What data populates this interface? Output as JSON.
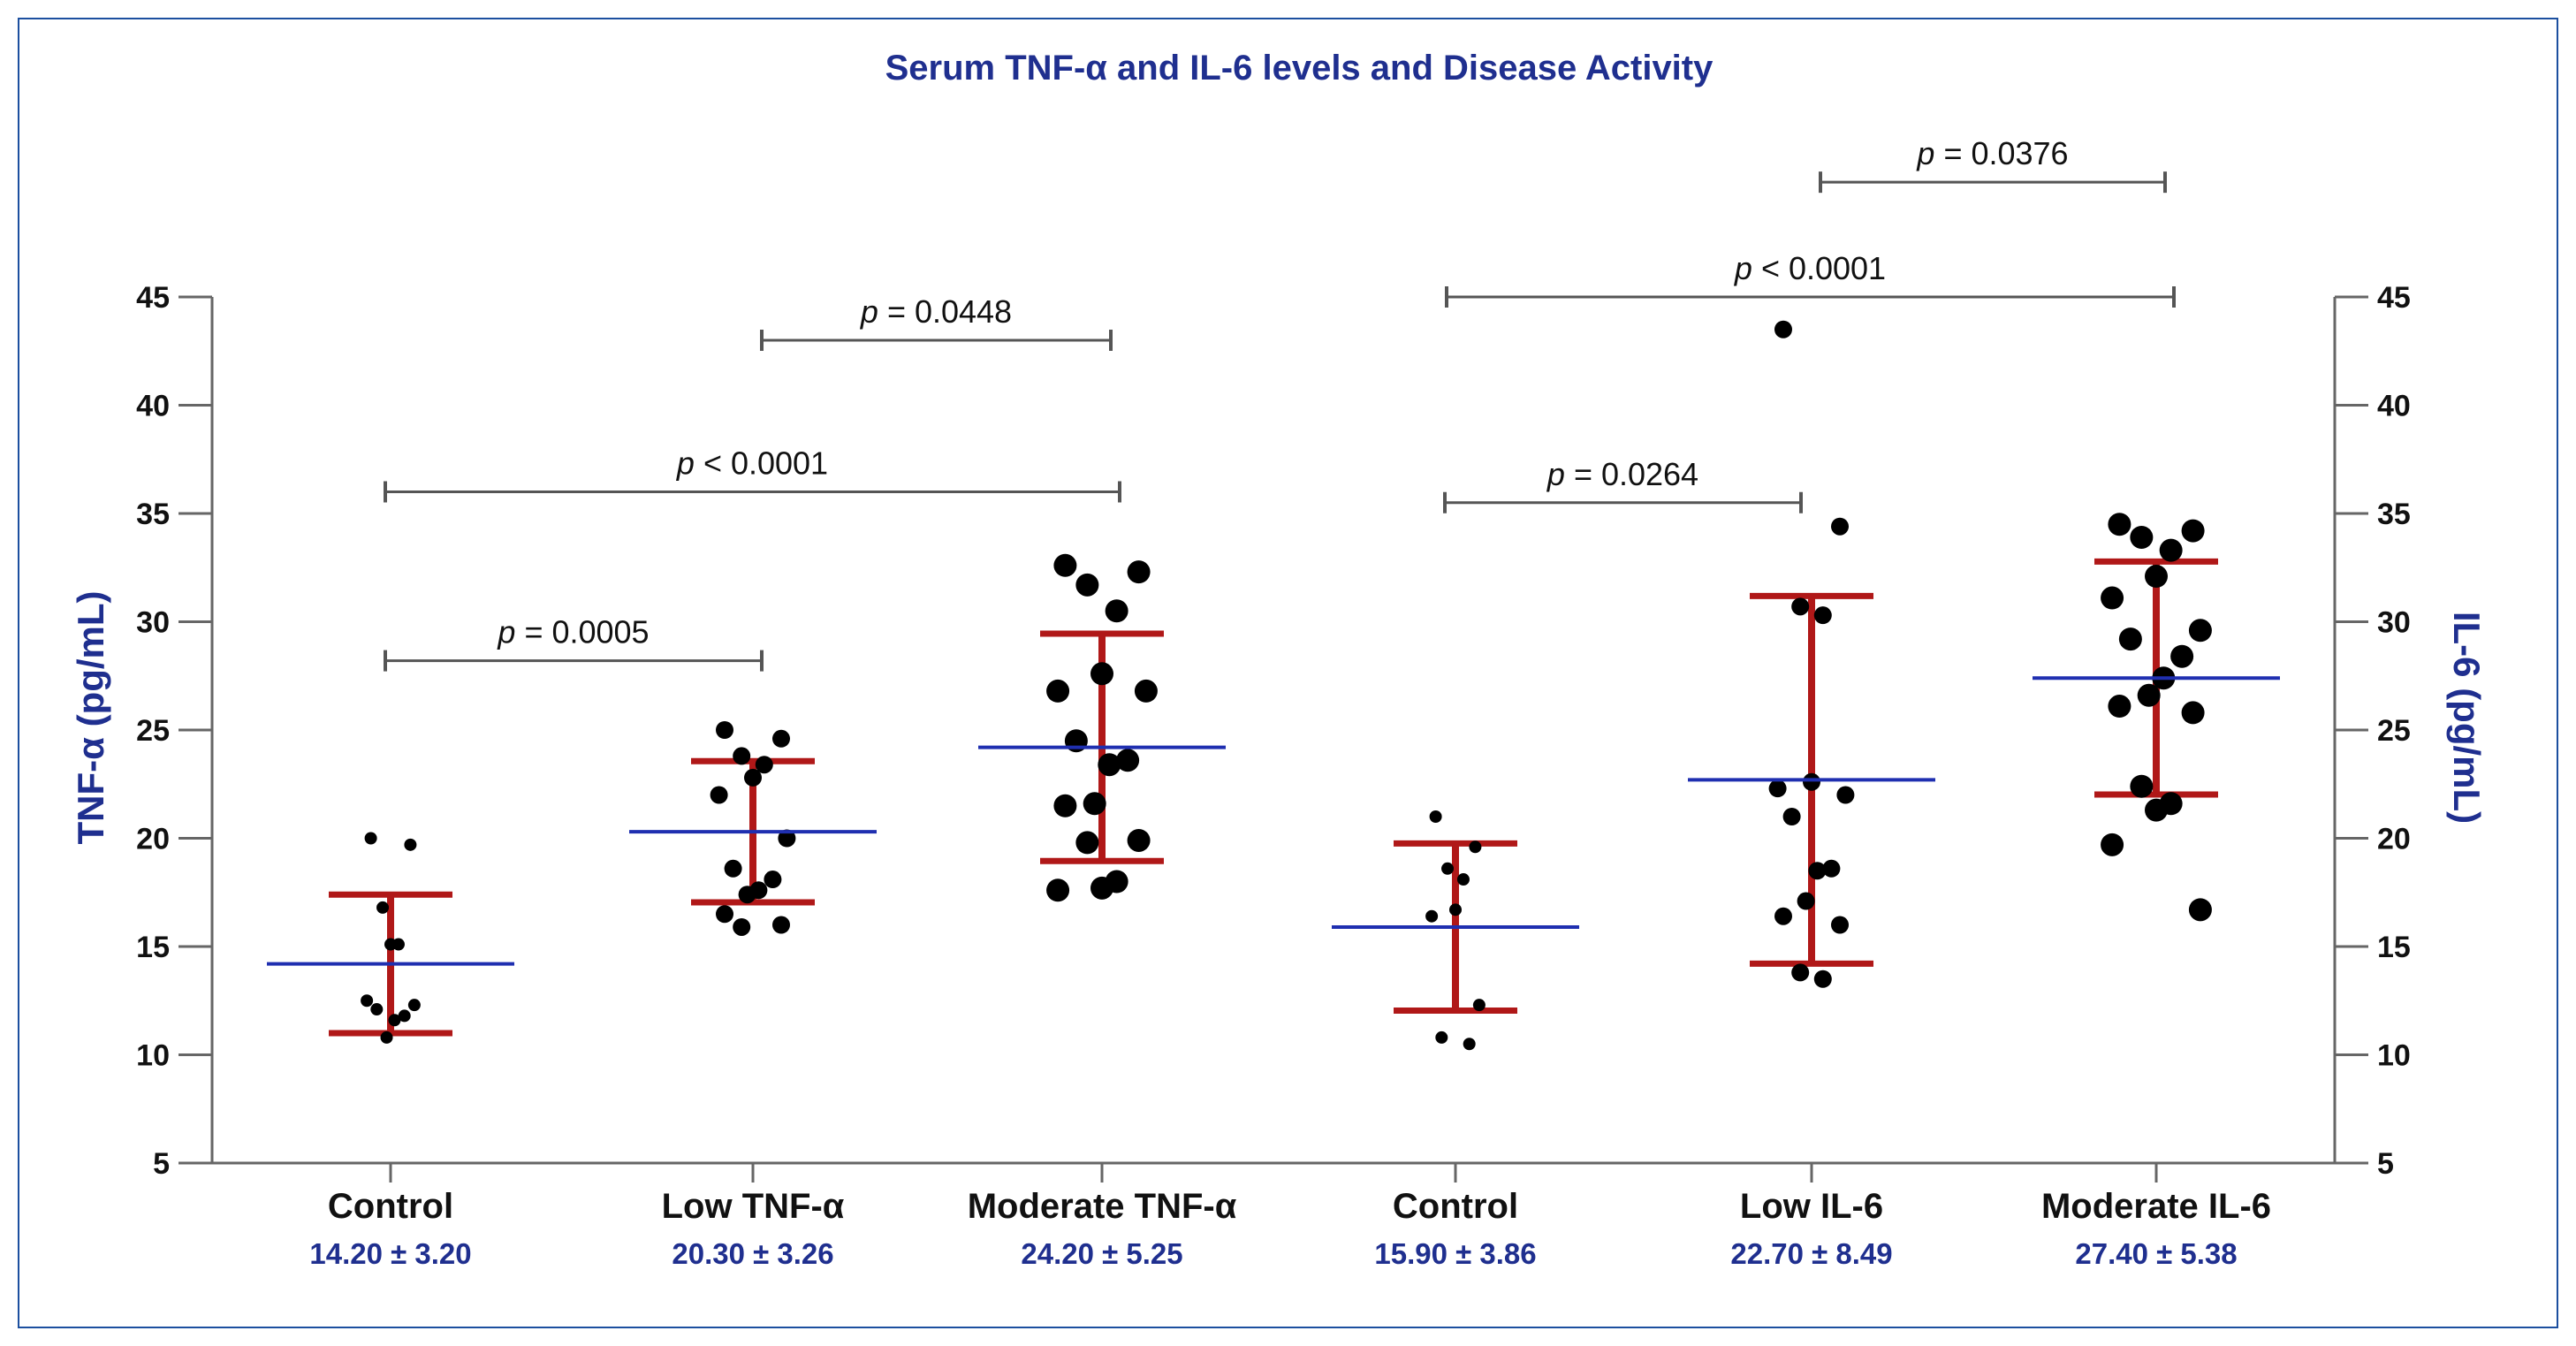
{
  "chart_data": {
    "type": "scatter",
    "title": "Serum TNF-α and IL-6 levels and Disease Activity",
    "ylabel_left": "TNF-α (pg/mL)",
    "ylabel_right": "IL-6 (pg/mL)",
    "ylim": [
      5,
      45
    ],
    "yticks": [
      5,
      10,
      15,
      20,
      25,
      30,
      35,
      40,
      45
    ],
    "colors": {
      "frame": "#1c4f9f",
      "mean_line": "#1f2fb0",
      "error_bar": "#b01818",
      "points": "#000000",
      "axis": "#666666",
      "bracket": "#555555"
    },
    "groups": [
      {
        "label": "Control",
        "stat": "14.20 ± 3.20",
        "mean": 14.2,
        "sd": 3.2,
        "dot": "small",
        "points": [
          20.0,
          19.7,
          16.8,
          15.1,
          15.1,
          12.5,
          12.3,
          12.1,
          11.8,
          11.6,
          10.8
        ]
      },
      {
        "label": "Low TNF-α",
        "stat": "20.30 ± 3.26",
        "mean": 20.3,
        "sd": 3.26,
        "dot": "medium",
        "points": [
          25.0,
          24.6,
          23.8,
          23.4,
          22.8,
          22.0,
          20.0,
          18.6,
          18.1,
          17.6,
          17.4,
          16.5,
          16.0,
          15.9
        ]
      },
      {
        "label": "Moderate TNF-α",
        "stat": "24.20 ± 5.25",
        "mean": 24.2,
        "sd": 5.25,
        "dot": "large",
        "points": [
          32.6,
          32.3,
          31.7,
          30.5,
          27.6,
          26.8,
          26.8,
          24.5,
          23.6,
          23.4,
          21.6,
          21.5,
          19.9,
          19.8,
          18.0,
          17.7,
          17.6
        ]
      },
      {
        "label": "Control",
        "stat": "15.90 ± 3.86",
        "mean": 15.9,
        "sd": 3.86,
        "dot": "small",
        "points": [
          21.0,
          19.6,
          18.6,
          18.1,
          16.7,
          16.4,
          12.3,
          10.8,
          10.5
        ]
      },
      {
        "label": "Low IL-6",
        "stat": "22.70 ± 8.49",
        "mean": 22.7,
        "sd": 8.49,
        "dot": "medium",
        "points": [
          43.5,
          34.4,
          30.7,
          30.3,
          22.6,
          22.3,
          22.0,
          21.0,
          18.6,
          18.5,
          17.1,
          16.4,
          16.0,
          13.8,
          13.5
        ]
      },
      {
        "label": "Moderate IL-6",
        "stat": "27.40 ± 5.38",
        "mean": 27.4,
        "sd": 5.38,
        "dot": "large",
        "points": [
          34.5,
          34.2,
          33.9,
          33.3,
          32.1,
          31.1,
          29.6,
          29.2,
          28.4,
          27.4,
          26.6,
          26.1,
          25.8,
          22.4,
          21.6,
          21.3,
          19.7,
          16.7
        ]
      }
    ],
    "comparisons": [
      {
        "from": 0,
        "to": 1,
        "label": "p = 0.0005",
        "level": 28.2
      },
      {
        "from": 0,
        "to": 2,
        "label": "p < 0.0001",
        "level": 36.0
      },
      {
        "from": 1,
        "to": 2,
        "label": "p = 0.0448",
        "level": 43.0
      },
      {
        "from": 3,
        "to": 4,
        "label": "p = 0.0264",
        "level": 35.5
      },
      {
        "from": 3,
        "to": 5,
        "label": "p < 0.0001",
        "level": 45.0
      },
      {
        "from": 4,
        "to": 5,
        "label": "p = 0.0376",
        "level": 50.3
      }
    ]
  }
}
